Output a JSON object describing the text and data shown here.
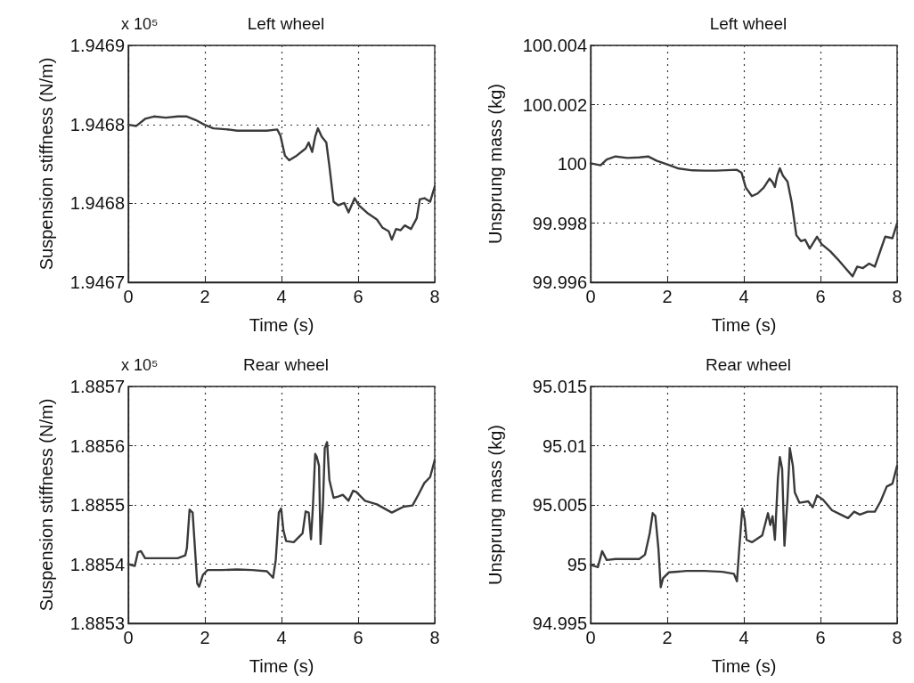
{
  "chart_data": [
    {
      "type": "line",
      "title": "Left wheel",
      "xlabel": "Time (s)",
      "ylabel": "Suspension stiffness (N/m)",
      "annotations": [
        "x 10⁵"
      ],
      "xlim": [
        0,
        8
      ],
      "xticks": [
        0,
        2,
        4,
        6,
        8
      ],
      "ylim": [
        1.9467,
        1.9469
      ],
      "yticks": [
        1.9467,
        {
          "value": 1.946767,
          "label": "1.9468"
        },
        {
          "value": 1.946833,
          "label": "1.9468"
        },
        1.9469
      ],
      "grid": true,
      "marker": "none",
      "line_style": "solid",
      "series": [
        {
          "color": "#3a3a3a",
          "x": [
            0,
            0.21,
            0.44,
            0.67,
            0.98,
            1.29,
            1.53,
            1.76,
            1.99,
            2.22,
            2.61,
            2.84,
            3.23,
            3.62,
            3.89,
            3.97,
            4.09,
            4.2,
            4.4,
            4.63,
            4.71,
            4.8,
            4.88,
            4.95,
            5.05,
            5.17,
            5.25,
            5.36,
            5.48,
            5.64,
            5.75,
            5.91,
            6.02,
            6.26,
            6.49,
            6.64,
            6.8,
            6.88,
            6.99,
            7.11,
            7.22,
            7.38,
            7.53,
            7.61,
            7.73,
            7.88,
            8
          ],
          "values": [
            1.946833,
            1.946832,
            1.946838,
            1.94684,
            1.946839,
            1.94684,
            1.94684,
            1.946837,
            1.946833,
            1.94683,
            1.946829,
            1.946828,
            1.946828,
            1.946828,
            1.946829,
            1.946824,
            1.946807,
            1.946803,
            1.946807,
            1.946813,
            1.946818,
            1.94681,
            1.946823,
            1.94683,
            1.946823,
            1.946818,
            1.946798,
            1.946768,
            1.946765,
            1.946767,
            1.946759,
            1.946771,
            1.946765,
            1.946758,
            1.946753,
            1.946746,
            1.946743,
            1.946736,
            1.946745,
            1.946744,
            1.946748,
            1.946745,
            1.946754,
            1.94677,
            1.946771,
            1.946768,
            1.946781
          ]
        }
      ]
    },
    {
      "type": "line",
      "title": "Left wheel",
      "xlabel": "Time (s)",
      "ylabel": "Unsprung mass (kg)",
      "xlim": [
        0,
        8
      ],
      "xticks": [
        0,
        2,
        4,
        6,
        8
      ],
      "ylim": [
        99.996,
        100.004
      ],
      "yticks": [
        99.996,
        99.998,
        100,
        100.002,
        100.004
      ],
      "grid": true,
      "marker": "none",
      "line_style": "solid",
      "series": [
        {
          "color": "#3a3a3a",
          "x": [
            0,
            0.26,
            0.42,
            0.65,
            0.96,
            1.27,
            1.5,
            1.73,
            2.0,
            2.27,
            2.66,
            2.97,
            3.28,
            3.82,
            3.94,
            4.05,
            4.21,
            4.36,
            4.52,
            4.67,
            4.75,
            4.81,
            4.87,
            4.94,
            5.02,
            5.14,
            5.25,
            5.37,
            5.49,
            5.6,
            5.72,
            5.91,
            6.03,
            6.26,
            6.45,
            6.65,
            6.84,
            6.96,
            7.11,
            7.27,
            7.42,
            7.57,
            7.69,
            7.88,
            8
          ],
          "values": [
            100.00002,
            99.99995,
            100.00015,
            100.00025,
            100.0002,
            100.00022,
            100.00025,
            100.0001,
            99.99998,
            99.99985,
            99.99978,
            99.99977,
            99.99977,
            99.9998,
            99.9997,
            99.9992,
            99.99891,
            99.999,
            99.9992,
            99.9995,
            99.99938,
            99.99922,
            99.9996,
            99.99985,
            99.9996,
            99.9994,
            99.99869,
            99.99759,
            99.99739,
            99.99744,
            99.99714,
            99.99754,
            99.99729,
            99.99704,
            99.99678,
            99.99648,
            99.9962,
            99.99653,
            99.99648,
            99.99663,
            99.99653,
            99.99709,
            99.99754,
            99.99749,
            99.99799
          ]
        }
      ]
    },
    {
      "type": "line",
      "title": "Rear wheel",
      "xlabel": "Time (s)",
      "ylabel": "Suspension stiffness (N/m)",
      "annotations": [
        "x 10⁵"
      ],
      "xlim": [
        0,
        8
      ],
      "xticks": [
        0,
        2,
        4,
        6,
        8
      ],
      "ylim": [
        1.8853,
        1.8857
      ],
      "yticks": [
        1.8853,
        1.8854,
        1.8855,
        1.8856,
        1.8857
      ],
      "grid": true,
      "marker": "none",
      "line_style": "solid",
      "series": [
        {
          "color": "#3a3a3a",
          "x": [
            0,
            0.17,
            0.25,
            0.33,
            0.44,
            0.67,
            0.98,
            1.29,
            1.49,
            1.53,
            1.6,
            1.68,
            1.74,
            1.8,
            1.85,
            1.95,
            2.07,
            2.46,
            2.84,
            3.23,
            3.62,
            3.78,
            3.85,
            3.93,
            3.99,
            4.05,
            4.12,
            4.32,
            4.55,
            4.63,
            4.71,
            4.77,
            4.82,
            4.88,
            4.92,
            4.98,
            5.02,
            5.08,
            5.13,
            5.19,
            5.25,
            5.36,
            5.48,
            5.6,
            5.75,
            5.87,
            5.95,
            6.18,
            6.49,
            6.88,
            7.03,
            7.19,
            7.42,
            7.57,
            7.73,
            7.88,
            8
          ],
          "values": [
            1.8854,
            1.885397,
            1.88542,
            1.885422,
            1.88541,
            1.88541,
            1.88541,
            1.88541,
            1.885415,
            1.885427,
            1.885492,
            1.885487,
            1.885427,
            1.885367,
            1.885362,
            1.885382,
            1.88539,
            1.88539,
            1.885391,
            1.88539,
            1.885388,
            1.885377,
            1.885407,
            1.885487,
            1.885494,
            1.885457,
            1.885439,
            1.885437,
            1.885452,
            1.885489,
            1.885487,
            1.885442,
            1.885497,
            1.885586,
            1.885581,
            1.885566,
            1.885434,
            1.885497,
            1.885596,
            1.885606,
            1.885542,
            1.885512,
            1.885514,
            1.885517,
            1.885507,
            1.885524,
            1.885522,
            1.885507,
            1.885501,
            1.885487,
            1.885492,
            1.885497,
            1.885499,
            1.885517,
            1.885537,
            1.885547,
            1.885576
          ]
        }
      ]
    },
    {
      "type": "line",
      "title": "Rear wheel",
      "xlabel": "Time (s)",
      "ylabel": "Unsprung mass (kg)",
      "xlim": [
        0,
        8
      ],
      "xticks": [
        0,
        2,
        4,
        6,
        8
      ],
      "ylim": [
        94.995,
        95.015
      ],
      "yticks": [
        94.995,
        95,
        95.005,
        95.01,
        95.015
      ],
      "grid": true,
      "marker": "none",
      "line_style": "solid",
      "series": [
        {
          "color": "#3a3a3a",
          "x": [
            0,
            0.19,
            0.3,
            0.42,
            0.65,
            0.96,
            1.27,
            1.42,
            1.54,
            1.62,
            1.69,
            1.77,
            1.83,
            1.89,
            2.04,
            2.51,
            2.97,
            3.44,
            3.74,
            3.82,
            3.88,
            3.96,
            4.02,
            4.07,
            4.21,
            4.48,
            4.63,
            4.69,
            4.75,
            4.81,
            4.89,
            4.94,
            5.0,
            5.06,
            5.14,
            5.2,
            5.28,
            5.33,
            5.45,
            5.68,
            5.8,
            5.91,
            6.07,
            6.3,
            6.53,
            6.72,
            6.88,
            7.03,
            7.23,
            7.42,
            7.57,
            7.73,
            7.88,
            8
          ],
          "values": [
            94.99993,
            94.99975,
            95.0011,
            95.00035,
            95.00043,
            95.00043,
            95.00043,
            95.0008,
            95.00255,
            95.0043,
            95.00405,
            95.0013,
            94.99805,
            94.9988,
            94.9993,
            94.99943,
            94.99943,
            94.99935,
            94.99918,
            94.99855,
            95.0013,
            95.00468,
            95.0038,
            95.00205,
            95.00185,
            95.00243,
            95.0043,
            95.0033,
            95.00405,
            95.00205,
            95.0073,
            95.00905,
            95.00805,
            95.00155,
            95.00555,
            95.0098,
            95.0083,
            95.00605,
            95.00518,
            95.0053,
            95.0048,
            95.0058,
            95.00543,
            95.00455,
            95.00418,
            95.00388,
            95.00443,
            95.00418,
            95.00443,
            95.00443,
            95.0053,
            95.00655,
            95.0068,
            95.0083
          ]
        }
      ]
    }
  ]
}
